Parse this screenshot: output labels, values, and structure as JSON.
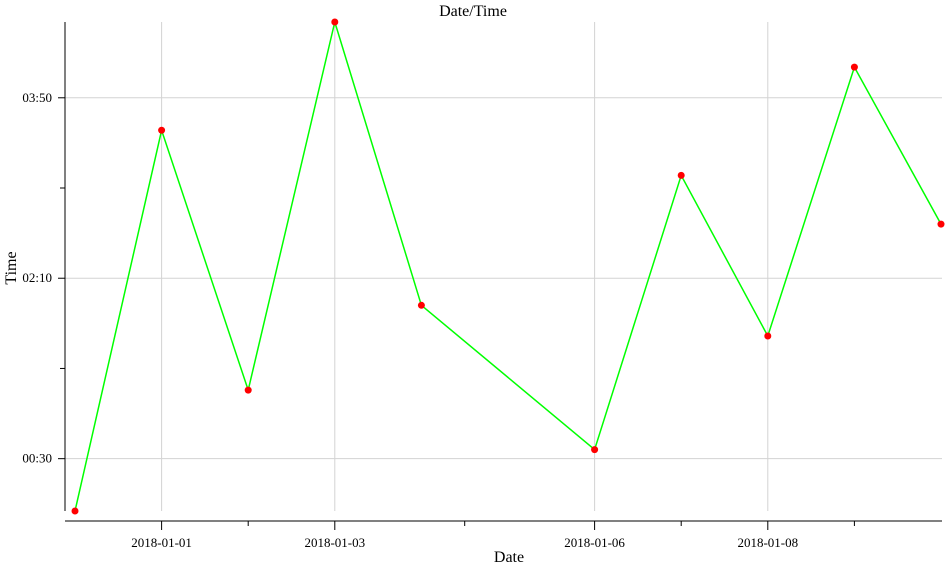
{
  "chart_data": {
    "type": "line",
    "title": "Date/Time",
    "xlabel": "Date",
    "ylabel": "Time",
    "grid": true,
    "x_ticks": [
      "2018-01-01",
      "2018-01-03",
      "2018-01-06",
      "2018-01-08"
    ],
    "y_ticks": [
      "00:30",
      "02:10",
      "03:50"
    ],
    "colors": {
      "line": "#00ff00",
      "marker": "#ff0000"
    },
    "x": [
      "2017-12-31",
      "2018-01-01",
      "2018-01-02",
      "2018-01-03",
      "2018-01-04",
      "2018-01-06",
      "2018-01-07",
      "2018-01-08",
      "2018-01-09",
      "2018-01-10"
    ],
    "y": [
      "00:01",
      "03:32",
      "01:08",
      "04:32",
      "01:55",
      "00:35",
      "03:07",
      "01:38",
      "04:07",
      "02:40"
    ]
  }
}
